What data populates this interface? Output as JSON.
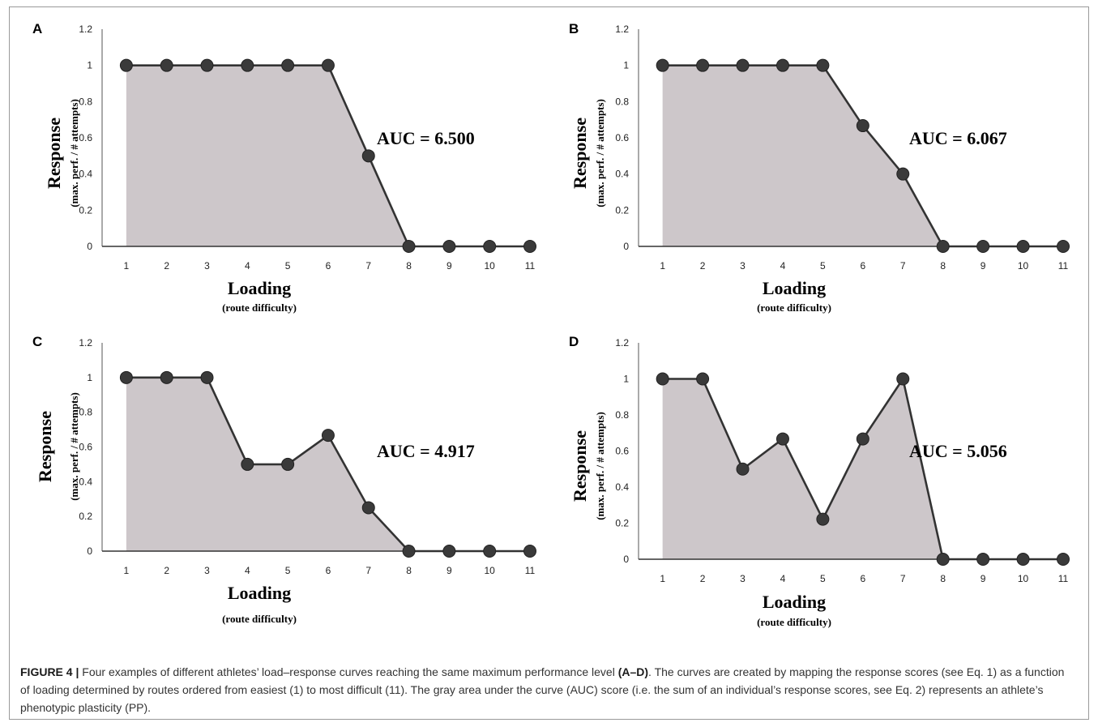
{
  "figure": {
    "caption_label": "FIGURE 4 |",
    "caption_part1": " Four examples of different athletes’ load–response curves reaching the same maximum performance level ",
    "caption_bold": "(A–D)",
    "caption_part2": ". The curves are created by mapping the response scores (see Eq. 1) as a function of loading determined by routes ordered from easiest (1) to most difficult (11). The gray area under the curve (AUC) score (i.e. the sum of an individual’s response scores, see Eq. 2) represents an athlete’s phenotypic plasticity (PP)."
  },
  "chart_data": [
    {
      "panel": "A",
      "type": "area",
      "x": [
        1,
        2,
        3,
        4,
        5,
        6,
        7,
        8,
        9,
        10,
        11
      ],
      "y": [
        1,
        1,
        1,
        1,
        1,
        1,
        0.5,
        0,
        0,
        0,
        0
      ],
      "xlabel": "Loading",
      "xlabel_sub": "(route difficulty)",
      "ylabel": "Response",
      "ylabel_sub": "(max. perf. / # attempts)",
      "ylim": [
        0,
        1.2
      ],
      "yticks": [
        "0",
        "0.2",
        "0.4",
        "0.6",
        "0.8",
        "1",
        "1.2"
      ],
      "annotation": "AUC = 6.500",
      "fill_color": "#cdc7ca",
      "line_color": "#333333"
    },
    {
      "panel": "B",
      "type": "area",
      "x": [
        1,
        2,
        3,
        4,
        5,
        6,
        7,
        8,
        9,
        10,
        11
      ],
      "y": [
        1,
        1,
        1,
        1,
        1,
        0.667,
        0.4,
        0,
        0,
        0,
        0
      ],
      "xlabel": "Loading",
      "xlabel_sub": "(route difficulty)",
      "ylabel": "Response",
      "ylabel_sub": "(max. perf. / # attempts)",
      "ylim": [
        0,
        1.2
      ],
      "yticks": [
        "0",
        "0.2",
        "0.4",
        "0.6",
        "0.8",
        "1",
        "1.2"
      ],
      "annotation": "AUC = 6.067",
      "fill_color": "#cdc7ca",
      "line_color": "#333333"
    },
    {
      "panel": "C",
      "type": "area",
      "x": [
        1,
        2,
        3,
        4,
        5,
        6,
        7,
        8,
        9,
        10,
        11
      ],
      "y": [
        1,
        1,
        1,
        0.5,
        0.5,
        0.667,
        0.25,
        0,
        0,
        0,
        0
      ],
      "xlabel": "Loading",
      "xlabel_sub": "(route difficulty)",
      "ylabel": "Response",
      "ylabel_sub": "(max. perf. / # attempts)",
      "ylim": [
        0,
        1.2
      ],
      "yticks": [
        "0",
        "0.2",
        "0.4",
        "0.6",
        "0.8",
        "1",
        "1.2"
      ],
      "annotation": "AUC = 4.917",
      "fill_color": "#cdc7ca",
      "line_color": "#333333"
    },
    {
      "panel": "D",
      "type": "area",
      "x": [
        1,
        2,
        3,
        4,
        5,
        6,
        7,
        8,
        9,
        10,
        11
      ],
      "y": [
        1,
        1,
        0.5,
        0.667,
        0.222,
        0.667,
        1,
        0,
        0,
        0,
        0
      ],
      "xlabel": "Loading",
      "xlabel_sub": "(route difficulty)",
      "ylabel": "Response",
      "ylabel_sub": "(max. perf. / # attempts)",
      "ylim": [
        0,
        1.2
      ],
      "yticks": [
        "0",
        "0.2",
        "0.4",
        "0.6",
        "0.8",
        "1",
        "1.2"
      ],
      "annotation": "AUC = 5.056",
      "fill_color": "#cdc7ca",
      "line_color": "#333333"
    }
  ]
}
